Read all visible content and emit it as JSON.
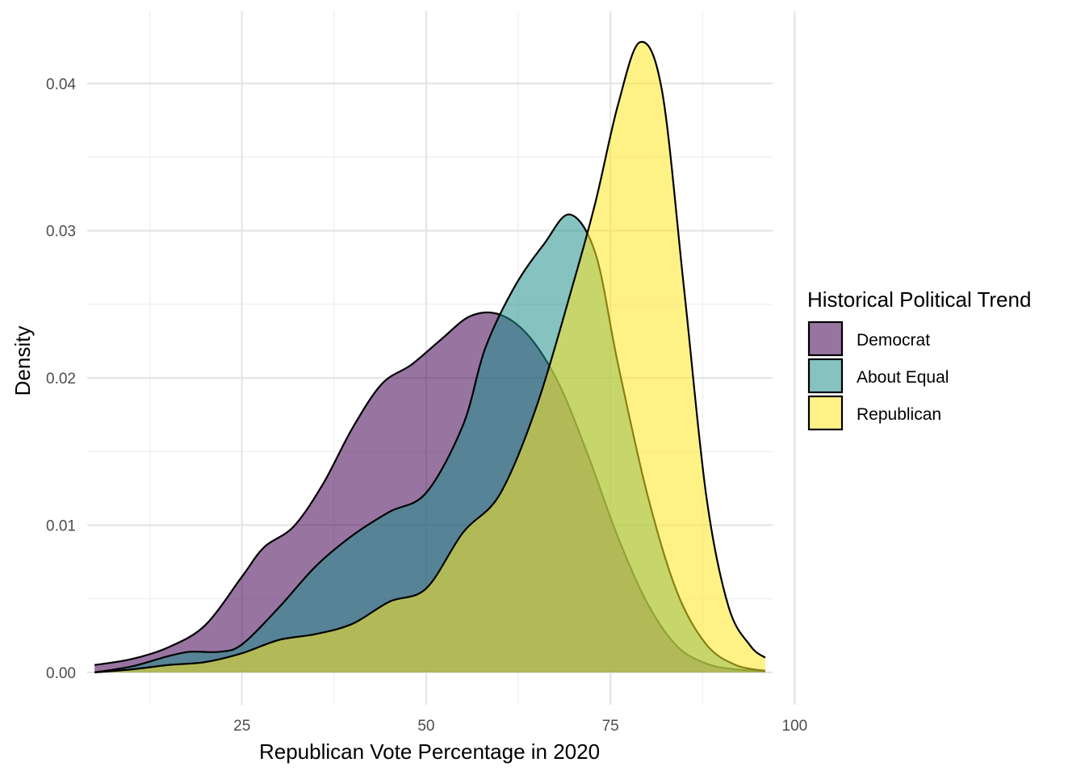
{
  "chart_data": {
    "type": "area",
    "subtype": "density",
    "xlabel": "Republican Vote Percentage in 2020",
    "ylabel": "Density",
    "xlim": [
      4,
      97
    ],
    "ylim": [
      -0.0022,
      0.0449
    ],
    "x_ticks": [
      25,
      50,
      75,
      100
    ],
    "y_ticks": [
      0.0,
      0.01,
      0.02,
      0.03,
      0.04
    ],
    "x_tick_labels": [
      "25",
      "50",
      "75",
      "100"
    ],
    "y_tick_labels": [
      "0.00",
      "0.01",
      "0.02",
      "0.03",
      "0.04"
    ],
    "grid": true,
    "legend": {
      "title": "Historical Political Trend",
      "position": "right"
    },
    "series": [
      {
        "name": "Democrat",
        "color": "#440154",
        "x": [
          5,
          10,
          15,
          20,
          25,
          28,
          32,
          36,
          40,
          44,
          48,
          52,
          56,
          60,
          64,
          68,
          72,
          76,
          80,
          84,
          88,
          92,
          96
        ],
        "y": [
          0.0005,
          0.0009,
          0.0017,
          0.0032,
          0.0065,
          0.0085,
          0.0099,
          0.0128,
          0.0166,
          0.0196,
          0.0209,
          0.0226,
          0.0242,
          0.0243,
          0.0228,
          0.0196,
          0.0147,
          0.0092,
          0.0047,
          0.0018,
          0.0006,
          0.0002,
          0.0001
        ]
      },
      {
        "name": "About Equal",
        "color": "#21908C",
        "x": [
          5,
          10,
          15,
          18,
          22,
          25,
          30,
          35,
          40,
          45,
          50,
          55,
          58,
          62,
          66,
          69.5,
          73,
          76,
          80,
          84,
          88,
          92,
          96
        ],
        "y": [
          0.0,
          0.0004,
          0.0011,
          0.0014,
          0.0014,
          0.0019,
          0.0044,
          0.0072,
          0.0093,
          0.0109,
          0.0122,
          0.0168,
          0.022,
          0.0262,
          0.0291,
          0.0311,
          0.0284,
          0.021,
          0.0121,
          0.0055,
          0.0019,
          0.0005,
          0.0001
        ]
      },
      {
        "name": "Republican",
        "color": "#FDE725",
        "x": [
          5,
          10,
          15,
          20,
          25,
          30,
          35,
          40,
          45,
          50,
          55,
          60,
          65,
          70,
          73,
          76,
          79,
          82,
          85,
          88,
          91,
          94,
          96
        ],
        "y": [
          0.0,
          0.0002,
          0.0005,
          0.0007,
          0.0013,
          0.0022,
          0.0026,
          0.0033,
          0.0048,
          0.0057,
          0.0095,
          0.0121,
          0.0181,
          0.0265,
          0.032,
          0.0385,
          0.0428,
          0.0395,
          0.026,
          0.012,
          0.0045,
          0.0018,
          0.001
        ]
      }
    ]
  }
}
